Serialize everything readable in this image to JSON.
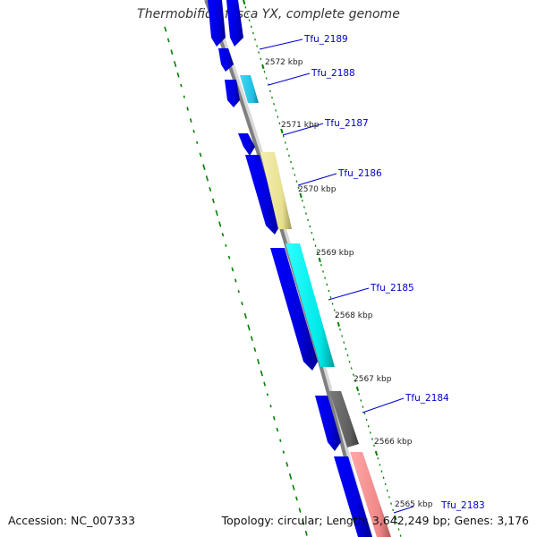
{
  "title": "Thermobifida fusca YX, complete genome",
  "footer": {
    "accession": "Accession: NC_007333",
    "summary": "Topology: circular; Length: 3,642,249 bp; Genes: 3,176"
  },
  "colors": {
    "background": "#ffffff",
    "backbone": "#808080",
    "gc_ticks": "#008000",
    "cds_default": "#0000ee",
    "gene_2188": "#29c7e6",
    "gene_2186": "#ece69c",
    "gene_2185": "#00e6e6",
    "gene_2184": "#5e5e5e",
    "gene_2183": "#f08888",
    "label": "#0000cc"
  },
  "scale_ticks": [
    {
      "label": "2572 kbp"
    },
    {
      "label": "2571 kbp"
    },
    {
      "label": "2570 kbp"
    },
    {
      "label": "2569 kbp"
    },
    {
      "label": "2568 kbp"
    },
    {
      "label": "2567 kbp"
    },
    {
      "label": "2566 kbp"
    },
    {
      "label": "2565 kbp"
    }
  ],
  "gene_labels": [
    {
      "label": "Tfu_2189"
    },
    {
      "label": "Tfu_2188"
    },
    {
      "label": "Tfu_2187"
    },
    {
      "label": "Tfu_2186"
    },
    {
      "label": "Tfu_2185"
    },
    {
      "label": "Tfu_2184"
    },
    {
      "label": "Tfu_2183"
    }
  ]
}
